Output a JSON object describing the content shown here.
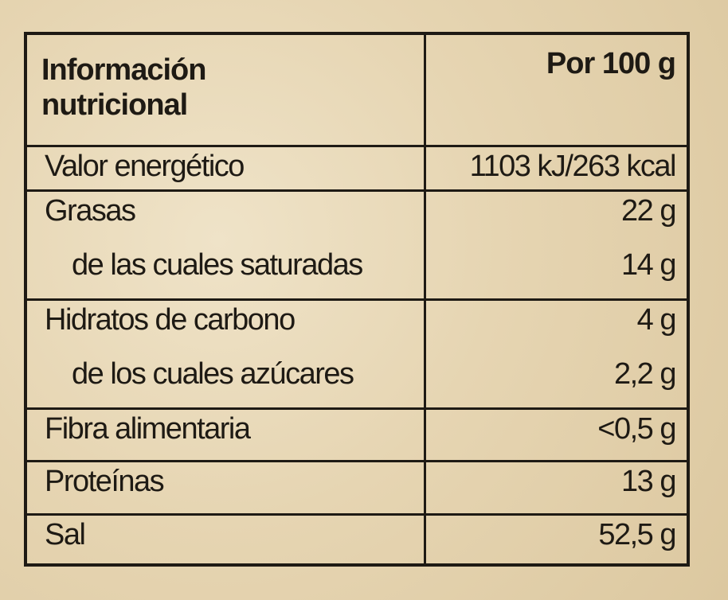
{
  "table": {
    "header": [
      "Información nutricional",
      "Por 100 g"
    ],
    "groups": [
      {
        "rows": [
          [
            "Valor energético",
            "1103 kJ/263 kcal"
          ]
        ]
      },
      {
        "rows": [
          [
            "Grasas",
            "22 g"
          ],
          [
            "de las cuales saturadas",
            "14 g"
          ]
        ]
      },
      {
        "rows": [
          [
            "Hidratos de carbono",
            "4 g"
          ],
          [
            "de los cuales azúcares",
            "2,2 g"
          ]
        ]
      },
      {
        "rows": [
          [
            "Fibra alimentaria",
            "<0,5 g"
          ]
        ]
      },
      {
        "rows": [
          [
            "Proteínas",
            "13 g"
          ]
        ]
      },
      {
        "rows": [
          [
            "Sal",
            "52,5 g"
          ]
        ]
      }
    ]
  }
}
